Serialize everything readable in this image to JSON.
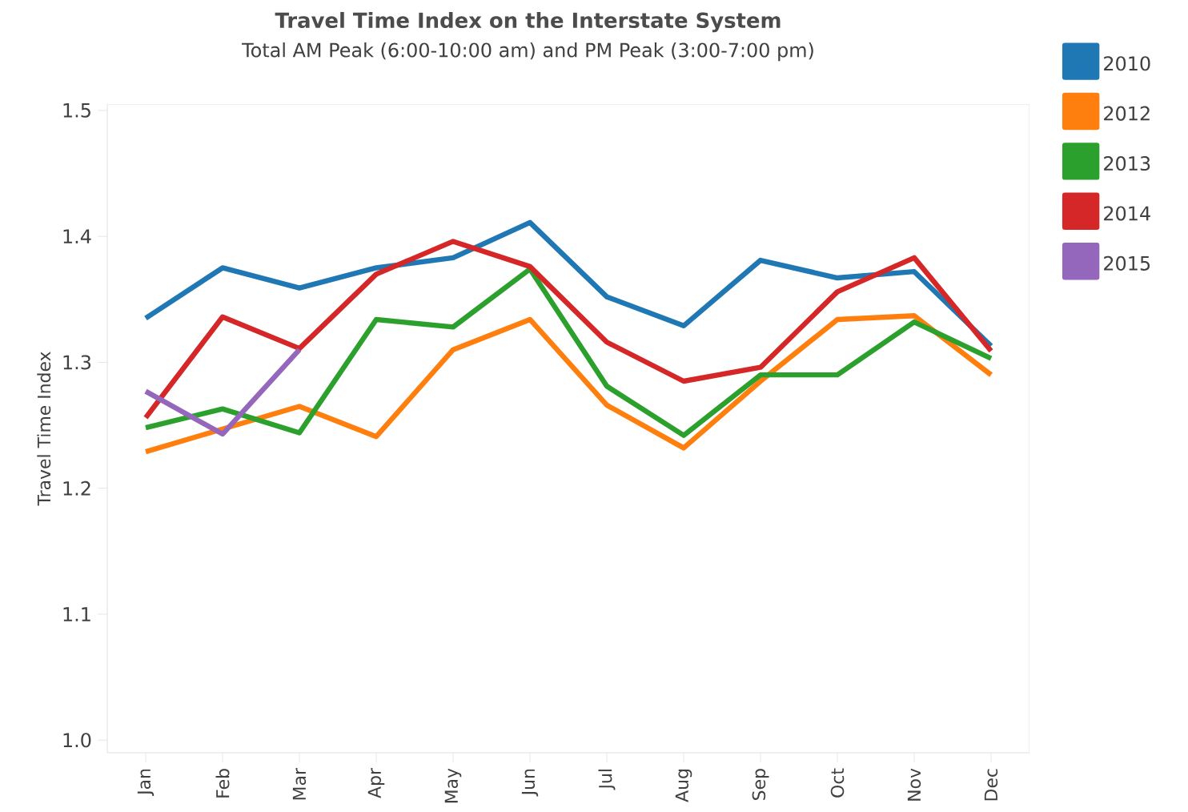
{
  "chart_data": {
    "type": "line",
    "title": "Travel Time Index on the Interstate System",
    "subtitle": "Total AM Peak (6:00-10:00 am) and PM Peak (3:00-7:00 pm)",
    "ylabel": "Travel Time Index",
    "categories": [
      "Jan",
      "Feb",
      "Mar",
      "Apr",
      "May",
      "Jun",
      "Jul",
      "Aug",
      "Sep",
      "Oct",
      "Nov",
      "Dec"
    ],
    "series": [
      {
        "name": "2010",
        "color": "#1f77b4",
        "values": [
          1.335,
          1.375,
          1.359,
          1.375,
          1.383,
          1.411,
          1.352,
          1.329,
          1.381,
          1.367,
          1.372,
          1.313
        ]
      },
      {
        "name": "2012",
        "color": "#ff7f0e",
        "values": [
          1.229,
          1.247,
          1.265,
          1.241,
          1.31,
          1.334,
          1.266,
          1.232,
          1.285,
          1.334,
          1.337,
          1.29
        ]
      },
      {
        "name": "2013",
        "color": "#2ca02c",
        "values": [
          1.248,
          1.263,
          1.244,
          1.334,
          1.328,
          1.374,
          1.281,
          1.242,
          1.29,
          1.29,
          1.332,
          1.303
        ]
      },
      {
        "name": "2014",
        "color": "#d62728",
        "values": [
          1.256,
          1.336,
          1.311,
          1.37,
          1.396,
          1.376,
          1.316,
          1.285,
          1.296,
          1.356,
          1.383,
          1.309
        ]
      },
      {
        "name": "2015",
        "color": "#9467bd",
        "values": [
          1.277,
          1.243,
          1.31,
          null,
          null,
          null,
          null,
          null,
          null,
          null,
          null,
          null
        ]
      }
    ],
    "ylim": [
      0.99,
      1.505
    ],
    "yticks": [
      {
        "value": 1.0,
        "label": "1.0"
      },
      1.1,
      1.2,
      1.3,
      1.4,
      1.5
    ],
    "grid": false,
    "legend": "top right",
    "marker": "none",
    "line_style": "solid"
  }
}
